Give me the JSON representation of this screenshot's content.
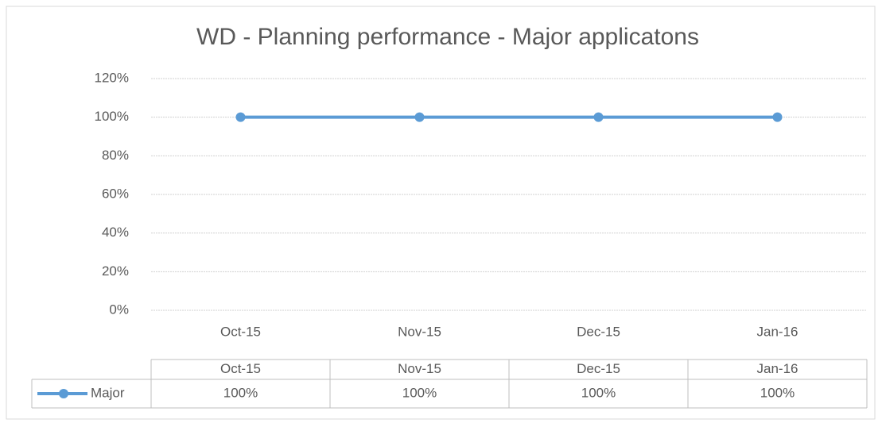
{
  "chart_data": {
    "type": "line",
    "title": "WD - Planning performance - Major applicatons",
    "categories": [
      "Oct-15",
      "Nov-15",
      "Dec-15",
      "Jan-16"
    ],
    "series": [
      {
        "name": "Major",
        "color": "#5b9bd5",
        "values": [
          100,
          100,
          100,
          100
        ],
        "value_labels": [
          "100%",
          "100%",
          "100%",
          "100%"
        ]
      }
    ],
    "ylim": [
      0,
      120
    ],
    "yticks": [
      {
        "value": 0,
        "label": "0%"
      },
      {
        "value": 20,
        "label": "20%"
      },
      {
        "value": 40,
        "label": "40%"
      },
      {
        "value": 60,
        "label": "60%"
      },
      {
        "value": 80,
        "label": "80%"
      },
      {
        "value": 100,
        "label": "100%"
      },
      {
        "value": 120,
        "label": "120%"
      }
    ],
    "grid": true,
    "data_table": true
  }
}
